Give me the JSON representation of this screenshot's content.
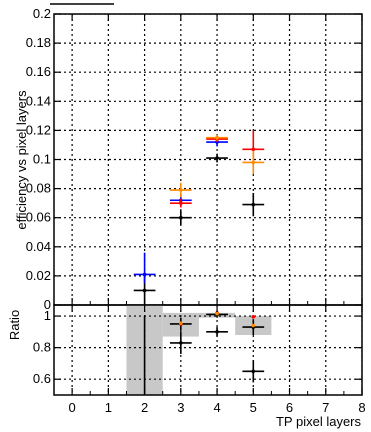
{
  "chart_data": [
    {
      "type": "scatter",
      "panel": "main",
      "title": "",
      "xlabel": "TP pixel layers",
      "ylabel": "efficiency vs pixel layers",
      "xlim": [
        -0.5,
        8
      ],
      "ylim": [
        0,
        0.2
      ],
      "x_ticks": [
        "0",
        "1",
        "2",
        "3",
        "4",
        "5",
        "6",
        "7",
        "8"
      ],
      "y_ticks": [
        "0",
        "0.02",
        "0.04",
        "0.06",
        "0.08",
        "0.1",
        "0.12",
        "0.14",
        "0.16",
        "0.18",
        "0.2"
      ],
      "grid": true,
      "series": [
        {
          "color": "#000000",
          "points": [
            {
              "x": 2,
              "y": 0.01,
              "xerr": 0.3,
              "yerr_low": 0.01,
              "yerr_high": 0.01
            },
            {
              "x": 3,
              "y": 0.06,
              "xerr": 0.3,
              "yerr_low": 0.005,
              "yerr_high": 0.005
            },
            {
              "x": 4,
              "y": 0.101,
              "xerr": 0.3,
              "yerr_low": 0.003,
              "yerr_high": 0.003
            },
            {
              "x": 5,
              "y": 0.069,
              "xerr": 0.3,
              "yerr_low": 0.008,
              "yerr_high": 0.008
            }
          ]
        },
        {
          "color": "#0000ff",
          "points": [
            {
              "x": 2,
              "y": 0.021,
              "xerr": 0.3,
              "yerr_low": 0.006,
              "yerr_high": 0.015
            },
            {
              "x": 3,
              "y": 0.072,
              "xerr": 0.3,
              "yerr_low": 0.004,
              "yerr_high": 0.004
            },
            {
              "x": 4,
              "y": 0.112,
              "xerr": 0.3,
              "yerr_low": 0.003,
              "yerr_high": 0.003
            }
          ]
        },
        {
          "color": "#ff0000",
          "points": [
            {
              "x": 3,
              "y": 0.07,
              "xerr": 0.3,
              "yerr_low": 0.003,
              "yerr_high": 0.003
            },
            {
              "x": 4,
              "y": 0.114,
              "xerr": 0.3,
              "yerr_low": 0.002,
              "yerr_high": 0.002
            },
            {
              "x": 5,
              "y": 0.107,
              "xerr": 0.3,
              "yerr_low": 0.006,
              "yerr_high": 0.013
            }
          ]
        },
        {
          "color": "#ff8c00",
          "points": [
            {
              "x": 3,
              "y": 0.079,
              "xerr": 0.3,
              "yerr_low": 0.005,
              "yerr_high": 0.005
            },
            {
              "x": 4,
              "y": 0.115,
              "xerr": 0.3,
              "yerr_low": 0.002,
              "yerr_high": 0.002
            },
            {
              "x": 5,
              "y": 0.098,
              "xerr": 0.3,
              "yerr_low": 0.008,
              "yerr_high": 0.008
            }
          ]
        }
      ]
    },
    {
      "type": "scatter",
      "panel": "ratio",
      "title": "",
      "xlabel": "TP pixel layers",
      "ylabel": "Ratio",
      "xlim": [
        -0.5,
        8
      ],
      "ylim": [
        0.5,
        1.07
      ],
      "x_ticks": [
        "0",
        "1",
        "2",
        "3",
        "4",
        "5",
        "6",
        "7",
        "8"
      ],
      "y_ticks": [
        "0.6",
        "0.8",
        "1"
      ],
      "grid": true,
      "bands": [
        {
          "x": 2,
          "half_width": 0.5,
          "low": 0.5,
          "high": 1.07,
          "color": "#c8c8c8"
        },
        {
          "x": 3,
          "half_width": 0.5,
          "low": 0.87,
          "high": 1.02,
          "color": "#c8c8c8"
        },
        {
          "x": 4,
          "half_width": 0.5,
          "low": 0.99,
          "high": 1.02,
          "color": "#c8c8c8"
        },
        {
          "x": 5,
          "half_width": 0.5,
          "low": 0.88,
          "high": 1.0,
          "color": "#c8c8c8"
        }
      ],
      "series": [
        {
          "color": "#000000",
          "points": [
            {
              "x": 2,
              "y": 0.48,
              "xerr": 0.3,
              "yerr_low": 0.0,
              "yerr_high": 0.52
            },
            {
              "x": 3,
              "y": 0.83,
              "xerr": 0.3,
              "yerr_low": 0.07,
              "yerr_high": 0.07
            },
            {
              "x": 4,
              "y": 0.9,
              "xerr": 0.3,
              "yerr_low": 0.03,
              "yerr_high": 0.03
            },
            {
              "x": 5,
              "y": 0.65,
              "xerr": 0.3,
              "yerr_low": 0.07,
              "yerr_high": 0.07
            }
          ]
        },
        {
          "color": "#000000",
          "points": [
            {
              "x": 3,
              "y": 0.95,
              "xerr": 0.3,
              "yerr_low": 0.04,
              "yerr_high": 0.04
            },
            {
              "x": 4,
              "y": 1.01,
              "xerr": 0.3,
              "yerr_low": 0.02,
              "yerr_high": 0.02
            },
            {
              "x": 5,
              "y": 0.93,
              "xerr": 0.3,
              "yerr_low": 0.05,
              "yerr_high": 0.05
            }
          ]
        },
        {
          "color": "#ff0000",
          "points": [
            {
              "x": 3,
              "y": 0.95
            },
            {
              "x": 4,
              "y": 1.02
            },
            {
              "x": 5,
              "y": 0.995
            }
          ]
        },
        {
          "color": "#ff8c00",
          "points": [
            {
              "x": 3,
              "y": 0.955
            },
            {
              "x": 4,
              "y": 1.015
            },
            {
              "x": 5,
              "y": 0.94
            }
          ]
        }
      ]
    }
  ]
}
